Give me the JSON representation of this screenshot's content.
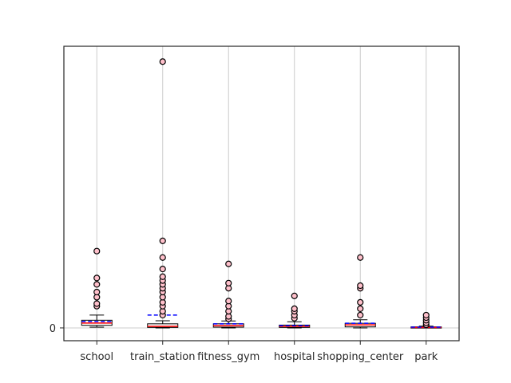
{
  "chart_data": {
    "type": "box",
    "title": "",
    "xlabel": "",
    "ylabel": "",
    "categories": [
      "school",
      "train_station",
      "fitness_gym",
      "hospital",
      "shopping_center",
      "park"
    ],
    "y_tick_labels": [
      "0"
    ],
    "grid": "vertical",
    "legend": "none",
    "ylim": [
      -5,
      110
    ],
    "boxes": [
      {
        "name": "school",
        "min": 0.3,
        "q1": 1.0,
        "median": 1.9,
        "q3": 3.0,
        "max": 5.0,
        "mean": 2.5,
        "outliers": [
          8.5,
          9.5,
          12.0,
          14.0,
          17.0,
          19.5,
          30.0
        ]
      },
      {
        "name": "train_station",
        "min": 0.0,
        "q1": 0.2,
        "median": 0.6,
        "q3": 1.6,
        "max": 2.8,
        "mean": 5.0,
        "outliers": [
          5.0,
          6.5,
          8.5,
          10.0,
          12.0,
          14.0,
          15.5,
          17.0,
          18.5,
          20.0,
          23.0,
          27.5,
          34.0,
          104.0
        ]
      },
      {
        "name": "fitness_gym",
        "min": 0.0,
        "q1": 0.3,
        "median": 0.9,
        "q3": 1.6,
        "max": 2.7,
        "mean": 1.6,
        "outliers": [
          3.5,
          4.5,
          6.5,
          8.5,
          10.5,
          15.5,
          17.5,
          25.0
        ]
      },
      {
        "name": "hospital",
        "min": 0.0,
        "q1": 0.2,
        "median": 0.6,
        "q3": 1.1,
        "max": 2.4,
        "mean": 0.9,
        "outliers": [
          3.8,
          5.0,
          6.5,
          7.5,
          12.5
        ]
      },
      {
        "name": "shopping_center",
        "min": 0.0,
        "q1": 0.4,
        "median": 1.2,
        "q3": 1.8,
        "max": 3.2,
        "mean": 1.8,
        "outliers": [
          5.0,
          7.5,
          10.0,
          15.5,
          16.5,
          27.5
        ]
      },
      {
        "name": "park",
        "min": 0.0,
        "q1": 0.05,
        "median": 0.2,
        "q3": 0.4,
        "max": 0.7,
        "mean": 0.3,
        "outliers": [
          1.2,
          2.0,
          3.0,
          4.0,
          5.0
        ]
      }
    ]
  },
  "colors": {
    "box_edge": "#000000",
    "median": "#ff0000",
    "mean": "#0000ff",
    "outlier_fill": "#ffc0cb",
    "grid": "#cccccc",
    "axes": "#262626"
  }
}
